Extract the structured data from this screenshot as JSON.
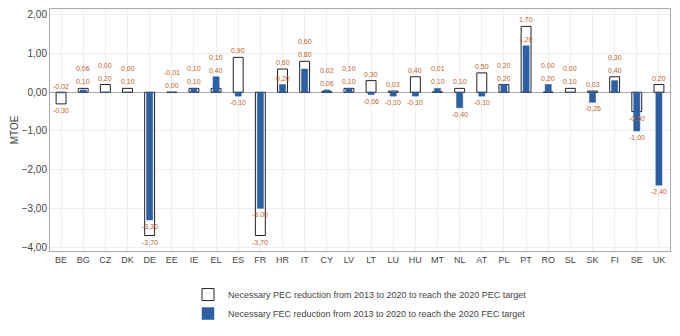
{
  "chart_data": {
    "type": "bar",
    "categories": [
      "BE",
      "BG",
      "CZ",
      "DK",
      "DE",
      "EE",
      "IE",
      "EL",
      "ES",
      "FR",
      "HR",
      "IT",
      "CY",
      "LV",
      "LT",
      "LU",
      "HU",
      "MT",
      "NL",
      "AT",
      "PL",
      "PT",
      "RO",
      "SL",
      "SK",
      "FI",
      "SE",
      "UK"
    ],
    "series": [
      {
        "name": "Necessary PEC reduction from 2013 to 2020 to reach the 2020 PEC target",
        "color": "#ffffff",
        "values": [
          -0.3,
          0.1,
          0.2,
          0.1,
          -3.7,
          0.0,
          0.1,
          0.1,
          0.9,
          -3.7,
          0.6,
          0.8,
          0.02,
          0.1,
          0.3,
          0.03,
          0.4,
          0.01,
          0.1,
          0.5,
          0.2,
          1.7,
          0.0,
          0.1,
          0.03,
          0.4,
          -0.5,
          0.2
        ],
        "value_labels": [
          "-0,30",
          "0,10",
          "0,20",
          "0,10",
          "-3,70",
          "0,00",
          "0,10",
          "0,10",
          "0,90",
          "-3,70",
          "0,60",
          "0,80",
          "0,02",
          "0,10",
          "0,30",
          "0,03",
          "0,40",
          "0,01",
          "0,10",
          "0,50",
          "0,20",
          "1,70",
          "0,00",
          "0,10",
          "0,03",
          "0,40",
          "-0,50",
          "0,20"
        ]
      },
      {
        "name": "Necessary FEC reduction from 2013 to 2020 to reach the 2020 FEC target",
        "color": "#2e5fa3",
        "values": [
          -0.02,
          0.06,
          0.0,
          0.0,
          -3.3,
          -0.01,
          0.1,
          0.4,
          -0.1,
          -3.0,
          0.2,
          0.6,
          0.06,
          0.1,
          -0.06,
          -0.1,
          -0.1,
          0.1,
          -0.4,
          -0.1,
          0.2,
          1.2,
          0.2,
          0.0,
          -0.26,
          0.3,
          -1.0,
          -2.4
        ],
        "value_labels": [
          "-0,02",
          "0,06",
          "0,00",
          "0,00",
          "-3,30",
          "-0,01",
          "0,10",
          "0,40",
          "-0,10",
          "-3,00",
          "0,20",
          "0,60",
          "0,06",
          "0,10",
          "-0,06",
          "-0,10",
          "-0,10",
          "0,10",
          "-0,40",
          "-0,10",
          "0,20",
          "1,20",
          "0,20",
          "0,00",
          "-0,26",
          "0,30",
          "-1,00",
          "-2,40"
        ]
      }
    ],
    "ylabel": "MTOE",
    "ylim": [
      -4.1,
      2.15
    ],
    "yticks": [
      {
        "value": 2.0,
        "label": "2,00"
      },
      {
        "value": 1.0,
        "label": "1,00"
      },
      {
        "value": 0.0,
        "label": "0,00"
      },
      {
        "value": -1.0,
        "label": "−1,00"
      },
      {
        "value": -2.0,
        "label": "−2,00"
      },
      {
        "value": -3.0,
        "label": "−3,00"
      },
      {
        "value": -4.0,
        "label": "−4,00"
      }
    ],
    "grid": true,
    "legend": "bottom",
    "data_labels": true
  }
}
